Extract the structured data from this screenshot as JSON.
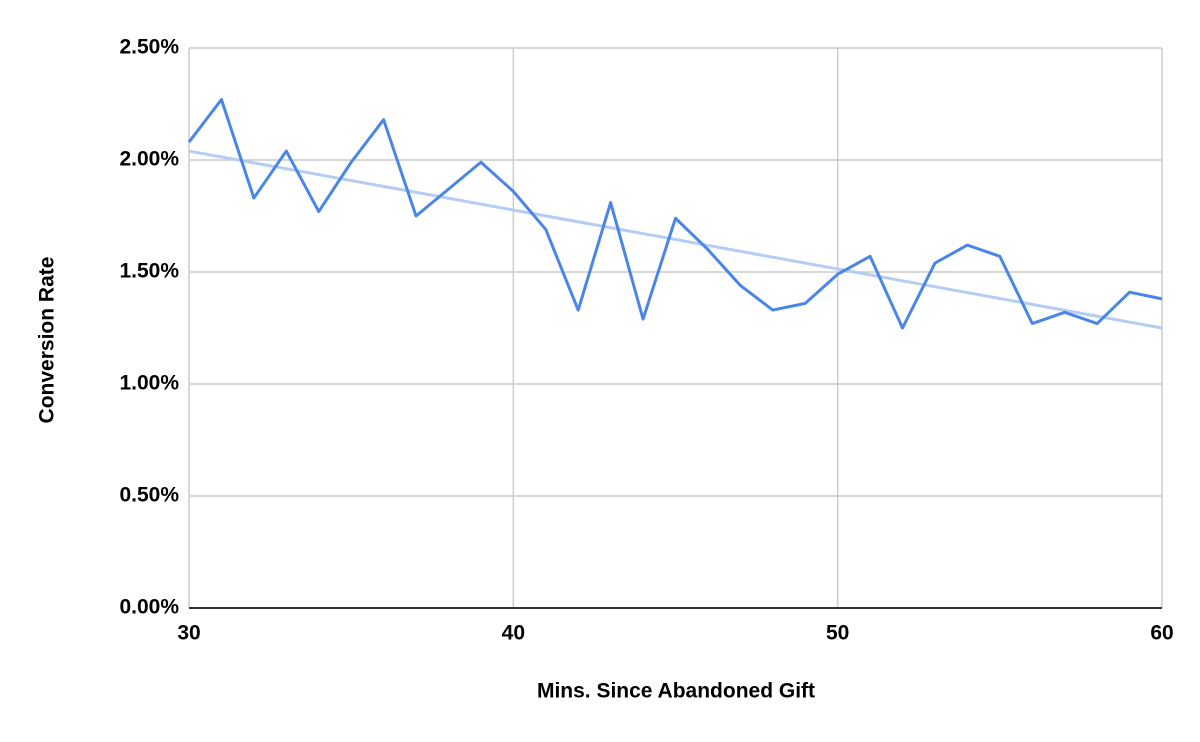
{
  "chart_data": {
    "type": "line",
    "x_label": "Mins. Since Abandoned Gift",
    "y_label": "Conversion Rate",
    "x": [
      30,
      31,
      32,
      33,
      34,
      35,
      36,
      37,
      38,
      39,
      40,
      41,
      42,
      43,
      44,
      45,
      46,
      47,
      48,
      49,
      50,
      51,
      52,
      53,
      54,
      55,
      56,
      57,
      58,
      59,
      60
    ],
    "series": [
      {
        "color": "#4a86e8",
        "values": [
          2.08,
          2.27,
          1.83,
          2.04,
          1.77,
          1.99,
          2.18,
          1.75,
          1.87,
          1.99,
          1.86,
          1.69,
          1.33,
          1.81,
          1.29,
          1.74,
          1.6,
          1.44,
          1.33,
          1.36,
          1.49,
          1.57,
          1.25,
          1.54,
          1.62,
          1.57,
          1.27,
          1.32,
          1.27,
          1.41,
          1.38
        ]
      }
    ],
    "trendline": {
      "color": "#b4cdf4",
      "x": [
        30,
        60
      ],
      "values": [
        2.04,
        1.25
      ]
    },
    "xlim": [
      30,
      60
    ],
    "xticks": [
      30,
      40,
      50,
      60
    ],
    "ylim": [
      0,
      2.5
    ],
    "yticks": [
      {
        "value": 0,
        "label": "0.00%"
      },
      {
        "value": 0.5,
        "label": "0.50%"
      },
      {
        "value": 1,
        "label": "1.00%"
      },
      {
        "value": 1.5,
        "label": "1.50%"
      },
      {
        "value": 2,
        "label": "2.00%"
      },
      {
        "value": 2.5,
        "label": "2.50%"
      }
    ],
    "grid": true
  }
}
